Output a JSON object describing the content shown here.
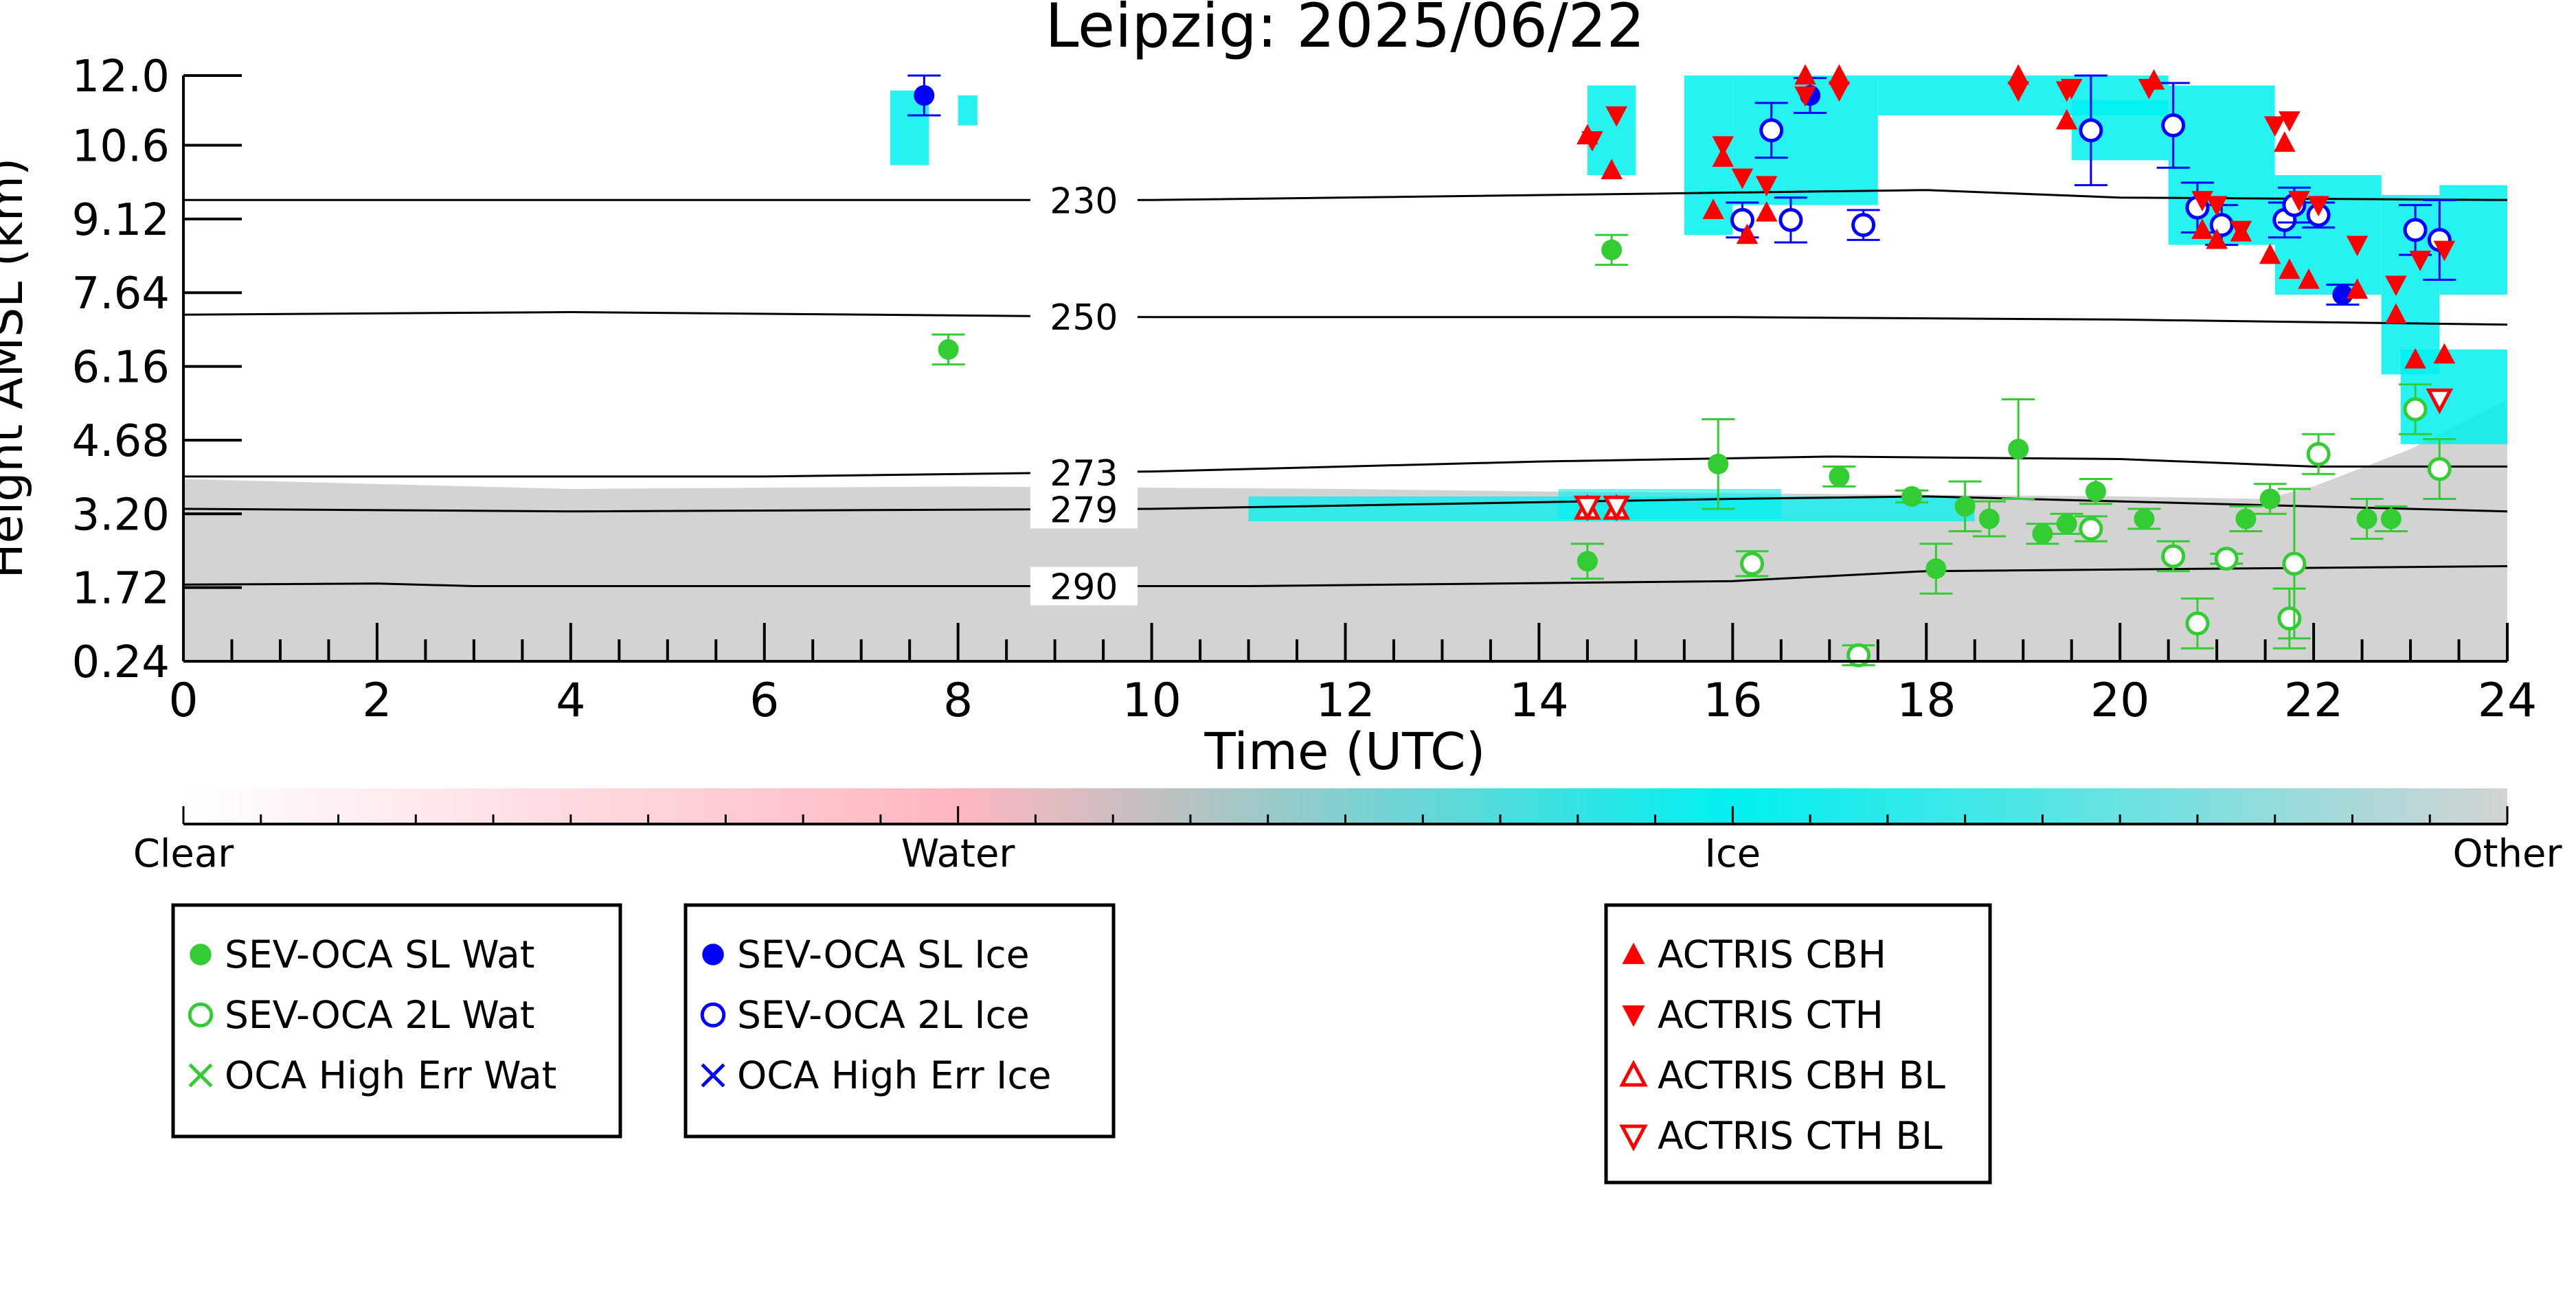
{
  "chart_data": {
    "type": "scatter",
    "title": "Leipzig: 2025/06/22",
    "xlabel": "Time (UTC)",
    "ylabel": "Height AMSL (km)",
    "xlim": [
      0,
      24
    ],
    "ylim": [
      0.24,
      12.0
    ],
    "x_ticks": [
      0,
      2,
      4,
      6,
      8,
      10,
      12,
      14,
      16,
      18,
      20,
      22,
      24
    ],
    "y_ticks": [
      "0.24",
      "1.72",
      "3.20",
      "4.68",
      "6.16",
      "7.64",
      "9.12",
      "10.6",
      "12.0"
    ],
    "isotherms": [
      {
        "label": "230",
        "points": [
          [
            0,
            9.5
          ],
          [
            10,
            9.5
          ],
          [
            18,
            9.7
          ],
          [
            20,
            9.55
          ],
          [
            24,
            9.5
          ]
        ]
      },
      {
        "label": "250",
        "points": [
          [
            0,
            7.2
          ],
          [
            4,
            7.25
          ],
          [
            10,
            7.15
          ],
          [
            16,
            7.15
          ],
          [
            20,
            7.1
          ],
          [
            24,
            7.0
          ]
        ]
      },
      {
        "label": "273",
        "points": [
          [
            0,
            3.95
          ],
          [
            6,
            3.95
          ],
          [
            10,
            4.05
          ],
          [
            14,
            4.25
          ],
          [
            17,
            4.35
          ],
          [
            20,
            4.3
          ],
          [
            22,
            4.15
          ],
          [
            24,
            4.15
          ]
        ]
      },
      {
        "label": "279",
        "points": [
          [
            0,
            3.3
          ],
          [
            4,
            3.25
          ],
          [
            10,
            3.3
          ],
          [
            16,
            3.5
          ],
          [
            18,
            3.55
          ],
          [
            24,
            3.25
          ]
        ]
      },
      {
        "label": "290",
        "points": [
          [
            0,
            1.78
          ],
          [
            2,
            1.8
          ],
          [
            3,
            1.75
          ],
          [
            10,
            1.75
          ],
          [
            11,
            1.75
          ],
          [
            16,
            1.85
          ],
          [
            18,
            2.05
          ],
          [
            24,
            2.15
          ]
        ]
      }
    ],
    "colorbar": {
      "labels": [
        "Clear",
        "Water",
        "Ice",
        "Other"
      ],
      "colors": [
        "#ffffff",
        "#ffb6c1",
        "#00f0f0",
        "#d3d3d3"
      ]
    },
    "series": [
      {
        "name": "SEV-OCA SL Wat",
        "marker": "filled-circle",
        "color": "#33cc33",
        "points": [
          [
            7.9,
            6.5,
            0.3
          ],
          [
            14.75,
            8.5,
            0.3
          ],
          [
            14.5,
            2.25,
            0.35
          ],
          [
            15.85,
            4.2,
            0.9
          ],
          [
            17.1,
            3.95,
            0.2
          ],
          [
            17.85,
            3.55,
            0.12
          ],
          [
            18.1,
            2.1,
            0.5
          ],
          [
            18.4,
            3.35,
            0.5
          ],
          [
            18.65,
            3.1,
            0.35
          ],
          [
            18.95,
            4.5,
            1.0
          ],
          [
            19.2,
            2.8,
            0.2
          ],
          [
            19.45,
            3.0,
            0.2
          ],
          [
            19.75,
            3.65,
            0.25
          ],
          [
            20.25,
            3.1,
            0.2
          ],
          [
            21.3,
            3.1,
            0.25
          ],
          [
            21.55,
            3.5,
            0.3
          ],
          [
            22.55,
            3.1,
            0.4
          ],
          [
            22.8,
            3.1,
            0.25
          ]
        ]
      },
      {
        "name": "SEV-OCA 2L Wat",
        "marker": "open-circle",
        "color": "#33cc33",
        "points": [
          [
            16.2,
            2.2,
            0.25
          ],
          [
            17.3,
            0.36,
            0.2
          ],
          [
            19.7,
            2.9,
            0.25
          ],
          [
            20.55,
            2.35,
            0.3
          ],
          [
            20.8,
            1.0,
            0.5
          ],
          [
            21.1,
            2.3,
            0.1
          ],
          [
            21.75,
            1.1,
            0.6
          ],
          [
            21.8,
            2.2,
            1.5
          ],
          [
            22.05,
            4.4,
            0.4
          ],
          [
            23.05,
            5.3,
            0.5
          ],
          [
            23.3,
            4.1,
            0.6
          ]
        ]
      },
      {
        "name": "OCA High Err Wat",
        "marker": "cross",
        "color": "#33cc33",
        "points": []
      },
      {
        "name": "SEV-OCA SL Ice",
        "marker": "filled-circle",
        "color": "#0000ff",
        "points": [
          [
            7.65,
            11.6,
            0.4
          ],
          [
            16.8,
            11.6,
            0.35
          ],
          [
            22.3,
            7.6,
            0.2
          ]
        ]
      },
      {
        "name": "SEV-OCA 2L Ice",
        "marker": "open-circle",
        "color": "#0000ff",
        "points": [
          [
            16.1,
            9.1,
            0.35
          ],
          [
            16.4,
            10.9,
            0.55
          ],
          [
            16.6,
            9.1,
            0.45
          ],
          [
            17.35,
            9.0,
            0.3
          ],
          [
            19.7,
            10.9,
            1.1
          ],
          [
            20.55,
            11.0,
            0.85
          ],
          [
            20.8,
            9.35,
            0.5
          ],
          [
            21.05,
            9.0,
            0.4
          ],
          [
            21.7,
            9.1,
            0.35
          ],
          [
            21.8,
            9.4,
            0.35
          ],
          [
            22.05,
            9.2,
            0.25
          ],
          [
            23.05,
            8.9,
            0.5
          ],
          [
            23.3,
            8.7,
            0.8
          ]
        ]
      },
      {
        "name": "OCA High Err Ice",
        "marker": "cross",
        "color": "#0000ff",
        "points": []
      },
      {
        "name": "ACTRIS CBH",
        "marker": "filled-triangle-up",
        "color": "#ff0000",
        "points": [
          [
            14.5,
            10.8
          ],
          [
            14.75,
            10.1
          ],
          [
            15.8,
            9.3
          ],
          [
            15.9,
            10.35
          ],
          [
            16.15,
            8.8
          ],
          [
            16.35,
            9.25
          ],
          [
            16.75,
            12.0
          ],
          [
            17.1,
            12.0
          ],
          [
            18.95,
            12.0
          ],
          [
            19.45,
            11.1
          ],
          [
            20.35,
            11.9
          ],
          [
            20.85,
            8.9
          ],
          [
            21.0,
            8.7
          ],
          [
            21.25,
            8.85
          ],
          [
            21.55,
            8.4
          ],
          [
            21.7,
            10.65
          ],
          [
            21.75,
            8.1
          ],
          [
            21.95,
            7.9
          ],
          [
            22.45,
            7.7
          ],
          [
            22.85,
            7.2
          ],
          [
            23.05,
            6.3
          ],
          [
            23.35,
            6.4
          ]
        ]
      },
      {
        "name": "ACTRIS CTH",
        "marker": "filled-triangle-down",
        "color": "#ff0000",
        "points": [
          [
            14.55,
            10.7
          ],
          [
            14.8,
            11.2
          ],
          [
            15.9,
            10.6
          ],
          [
            16.1,
            9.95
          ],
          [
            16.35,
            9.8
          ],
          [
            16.75,
            11.6
          ],
          [
            17.1,
            11.7
          ],
          [
            18.95,
            11.7
          ],
          [
            19.45,
            11.7
          ],
          [
            19.5,
            11.75
          ],
          [
            20.3,
            11.75
          ],
          [
            20.85,
            9.5
          ],
          [
            21.0,
            9.4
          ],
          [
            21.25,
            8.9
          ],
          [
            21.6,
            11.0
          ],
          [
            21.75,
            11.1
          ],
          [
            21.85,
            9.5
          ],
          [
            22.05,
            9.4
          ],
          [
            22.45,
            8.6
          ],
          [
            22.85,
            7.8
          ],
          [
            23.1,
            8.3
          ],
          [
            23.35,
            8.5
          ]
        ]
      },
      {
        "name": "ACTRIS CBH BL",
        "marker": "open-triangle-up",
        "color": "#ff0000",
        "points": [
          [
            14.5,
            3.3
          ],
          [
            14.8,
            3.3
          ]
        ]
      },
      {
        "name": "ACTRIS CTH BL",
        "marker": "open-triangle-down",
        "color": "#ff0000",
        "points": [
          [
            14.5,
            3.35
          ],
          [
            14.8,
            3.35
          ],
          [
            23.3,
            5.5
          ]
        ]
      }
    ],
    "legend": [
      {
        "position": "bottom-left",
        "entries": [
          "SEV-OCA SL Wat",
          "SEV-OCA 2L Wat",
          "OCA High Err Wat"
        ]
      },
      {
        "position": "bottom-center-left",
        "entries": [
          "SEV-OCA SL Ice",
          "SEV-OCA 2L Ice",
          "OCA High Err Ice"
        ]
      },
      {
        "position": "bottom-center-right",
        "entries": [
          "ACTRIS CBH",
          "ACTRIS CTH",
          "ACTRIS CBH BL",
          "ACTRIS CTH BL"
        ]
      }
    ]
  }
}
